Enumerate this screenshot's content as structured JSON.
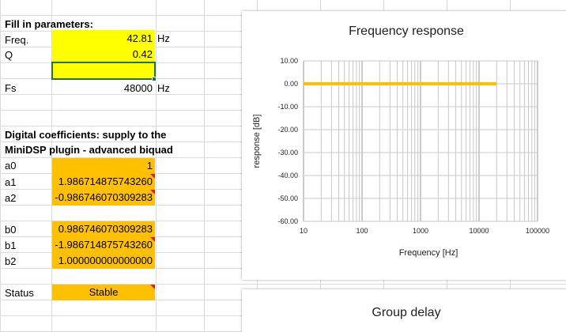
{
  "sheet": {
    "heading": "Fill in parameters:",
    "params": [
      {
        "label": "Freq.",
        "value": "42.81",
        "unit": "Hz"
      },
      {
        "label": "Q",
        "value": "0.42",
        "unit": ""
      },
      {
        "label": "",
        "value": "",
        "unit": ""
      },
      {
        "label": "Fs",
        "value": "48000",
        "unit": "Hz"
      }
    ],
    "coef_heading_1": "Digital coefficients: supply to the",
    "coef_heading_2": "MiniDSP plugin - advanced biquad",
    "a": [
      {
        "label": "a0",
        "value": "1"
      },
      {
        "label": "a1",
        "value": "1.986714875743260"
      },
      {
        "label": "a2",
        "value": "-0.986746070309283"
      }
    ],
    "b": [
      {
        "label": "b0",
        "value": "0.986746070309283"
      },
      {
        "label": "b1",
        "value": "-1.986714875743260"
      },
      {
        "label": "b2",
        "value": "1.000000000000000"
      }
    ],
    "status_label": "Status",
    "status_value": "Stable",
    "colors": {
      "input_fill": "#ffff00",
      "output_fill": "#ffc000",
      "comment_marker": "#e02020",
      "selection": "#217346"
    }
  },
  "chart_data": [
    {
      "type": "line",
      "title": "Frequency response",
      "xlabel": "Frequency [Hz]",
      "ylabel": "response [dB]",
      "x_scale": "log",
      "xlim": [
        10,
        100000
      ],
      "ylim": [
        -60,
        10
      ],
      "x_ticks": [
        "10",
        "100",
        "1000",
        "10000",
        "100000"
      ],
      "y_ticks": [
        "10.00",
        "0.00",
        "-10.00",
        "-20.00",
        "-30.00",
        "-40.00",
        "-50.00",
        "-60.00"
      ],
      "grid": true,
      "series": [
        {
          "color": "#ffc000",
          "x": [
            10,
            20000
          ],
          "y": [
            0,
            0
          ]
        }
      ]
    },
    {
      "type": "line",
      "title": "Group delay"
    }
  ]
}
